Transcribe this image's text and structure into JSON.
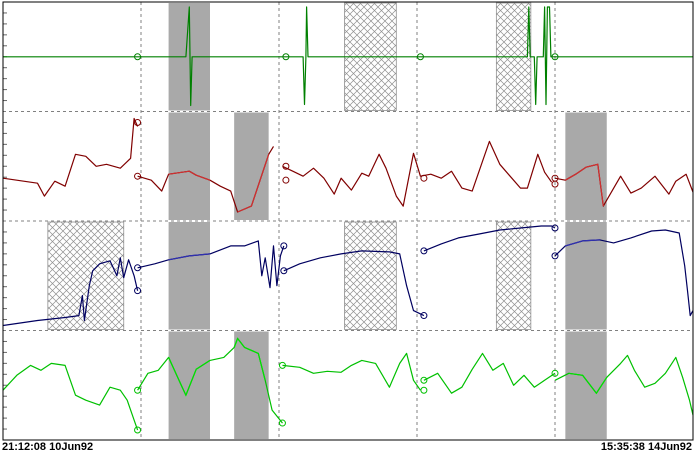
{
  "time_axis": {
    "start_label": "21:12:08 10Jun92",
    "end_label": "15:35:38 14Jun92"
  },
  "colors": {
    "gap_fill": "#a9a9a9",
    "hatch": "#909090",
    "grid": "#808080",
    "frame": "#000000",
    "tick": "#666666"
  },
  "chart_data": {
    "type": "line",
    "x_range": [
      0,
      100
    ],
    "grid_x": [
      20,
      40,
      60,
      80
    ],
    "panels": [
      {
        "id": "panel-1",
        "color": "#008000",
        "y_range": [
          0,
          1
        ],
        "gaps": [
          [
            24,
            30
          ]
        ],
        "hatched": [
          [
            49.5,
            57
          ],
          [
            71.5,
            76.5
          ]
        ],
        "segments": [
          [
            [
              0,
              0.5
            ],
            [
              19.5,
              0.5
            ],
            [
              24,
              0.5
            ],
            [
              26.5,
              0.5
            ],
            [
              27,
              1.0
            ],
            [
              27.2,
              0.01
            ],
            [
              27.4,
              0.5
            ],
            [
              30,
              0.5
            ],
            [
              41,
              0.5
            ],
            [
              43.5,
              0.5
            ],
            [
              43.7,
              0.02
            ],
            [
              43.9,
              0.5
            ],
            [
              44,
              1.0
            ],
            [
              44.2,
              0.5
            ],
            [
              60.5,
              0.5
            ],
            [
              76,
              0.5
            ],
            [
              76.2,
              1.0
            ],
            [
              76.4,
              0.5
            ],
            [
              77,
              0.5
            ],
            [
              77.2,
              0.02
            ],
            [
              77.4,
              0.5
            ],
            [
              78.3,
              0.5
            ],
            [
              78.5,
              1.0
            ],
            [
              78.7,
              0.02
            ],
            [
              78.9,
              1.0
            ],
            [
              79.2,
              1.0
            ],
            [
              79.4,
              0.5
            ],
            [
              81,
              0.5
            ],
            [
              100,
              0.5
            ]
          ]
        ],
        "markers": [
          [
            19.5,
            0.5
          ],
          [
            41,
            0.5
          ],
          [
            60.5,
            0.5
          ],
          [
            80,
            0.5
          ]
        ]
      },
      {
        "id": "panel-2",
        "color": "#800000",
        "highlight_color": "#d03030",
        "y_range": [
          0,
          1
        ],
        "gaps": [
          [
            24,
            30
          ],
          [
            33.5,
            38.5
          ],
          [
            81.5,
            87.5
          ]
        ],
        "hatched": [],
        "segments": [
          [
            [
              0,
              0.38
            ],
            [
              3,
              0.35
            ],
            [
              5,
              0.33
            ],
            [
              6,
              0.2
            ],
            [
              7.5,
              0.35
            ],
            [
              9,
              0.3
            ],
            [
              10.5,
              0.62
            ],
            [
              12,
              0.6
            ],
            [
              13.5,
              0.5
            ],
            [
              15,
              0.52
            ],
            [
              17,
              0.48
            ],
            [
              18.5,
              0.58
            ],
            [
              19,
              0.98
            ],
            [
              19.5,
              0.9
            ]
          ],
          [
            [
              19.5,
              0.4
            ],
            [
              21.5,
              0.36
            ],
            [
              23,
              0.25
            ],
            [
              24,
              0.42
            ],
            [
              27,
              0.45
            ],
            [
              28,
              0.41
            ],
            [
              30,
              0.36
            ],
            [
              31.5,
              0.3
            ],
            [
              33,
              0.25
            ],
            [
              34,
              0.04
            ],
            [
              36,
              0.1
            ],
            [
              38.5,
              0.62
            ],
            [
              39.2,
              0.7
            ]
          ],
          [
            [
              40.5,
              0.5
            ],
            [
              42,
              0.45
            ],
            [
              43.5,
              0.4
            ],
            [
              45,
              0.48
            ],
            [
              46.5,
              0.38
            ],
            [
              48,
              0.22
            ],
            [
              49,
              0.38
            ],
            [
              50.5,
              0.26
            ],
            [
              52,
              0.43
            ],
            [
              53,
              0.4
            ],
            [
              54.5,
              0.62
            ],
            [
              55.5,
              0.48
            ],
            [
              57,
              0.2
            ],
            [
              58,
              0.1
            ],
            [
              59.5,
              0.63
            ],
            [
              60.5,
              0.4
            ],
            [
              62,
              0.42
            ],
            [
              63.5,
              0.38
            ],
            [
              65,
              0.45
            ],
            [
              66.5,
              0.28
            ],
            [
              68,
              0.25
            ],
            [
              69.5,
              0.55
            ],
            [
              70.5,
              0.75
            ],
            [
              72,
              0.52
            ],
            [
              73.5,
              0.4
            ],
            [
              75,
              0.28
            ],
            [
              76,
              0.28
            ],
            [
              77.5,
              0.62
            ],
            [
              78.5,
              0.44
            ],
            [
              79.5,
              0.34
            ]
          ],
          [
            [
              80,
              0.38
            ],
            [
              81.5,
              0.36
            ],
            [
              83,
              0.42
            ],
            [
              84.5,
              0.49
            ],
            [
              86.2,
              0.52
            ],
            [
              87,
              0.1
            ],
            [
              89.5,
              0.4
            ],
            [
              91,
              0.23
            ],
            [
              92.5,
              0.28
            ],
            [
              94.5,
              0.4
            ],
            [
              96.5,
              0.22
            ],
            [
              97.5,
              0.35
            ],
            [
              99,
              0.42
            ],
            [
              100,
              0.24
            ]
          ]
        ],
        "markers": [
          [
            19.5,
            0.94
          ],
          [
            19.5,
            0.4
          ],
          [
            41,
            0.5
          ],
          [
            41,
            0.36
          ],
          [
            61,
            0.38
          ],
          [
            80,
            0.32
          ],
          [
            80,
            0.38
          ]
        ]
      },
      {
        "id": "panel-3",
        "color": "#000060",
        "highlight_color": "#3030b0",
        "y_range": [
          0,
          1
        ],
        "gaps": [
          [
            24,
            30
          ],
          [
            81.5,
            87.5
          ]
        ],
        "hatched": [
          [
            6.5,
            17.5
          ],
          [
            49.5,
            57
          ],
          [
            71.5,
            76.5
          ]
        ],
        "segments": [
          [
            [
              0,
              0.0
            ],
            [
              5,
              0.05
            ],
            [
              9,
              0.08
            ],
            [
              11,
              0.1
            ],
            [
              11.5,
              0.3
            ],
            [
              11.8,
              0.05
            ],
            [
              12.5,
              0.4
            ],
            [
              13,
              0.55
            ],
            [
              14,
              0.62
            ],
            [
              15.5,
              0.65
            ],
            [
              16.5,
              0.5
            ],
            [
              17,
              0.68
            ],
            [
              17.5,
              0.48
            ],
            [
              18.2,
              0.66
            ],
            [
              19,
              0.5
            ],
            [
              19.5,
              0.35
            ]
          ],
          [
            [
              19.5,
              0.58
            ],
            [
              22,
              0.62
            ],
            [
              24,
              0.66
            ],
            [
              27,
              0.7
            ],
            [
              30,
              0.72
            ],
            [
              33,
              0.8
            ],
            [
              35,
              0.8
            ],
            [
              37,
              0.85
            ],
            [
              37.5,
              0.5
            ],
            [
              38,
              0.68
            ],
            [
              38.7,
              0.38
            ],
            [
              39.2,
              0.8
            ],
            [
              39.7,
              0.4
            ],
            [
              40.2,
              0.7
            ],
            [
              40.7,
              0.8
            ]
          ],
          [
            [
              40.7,
              0.55
            ],
            [
              43,
              0.62
            ],
            [
              46,
              0.68
            ],
            [
              49,
              0.72
            ],
            [
              52,
              0.75
            ],
            [
              56,
              0.74
            ],
            [
              57.5,
              0.72
            ],
            [
              58.5,
              0.4
            ],
            [
              59.5,
              0.15
            ],
            [
              61,
              0.1
            ]
          ],
          [
            [
              61,
              0.75
            ],
            [
              63.5,
              0.82
            ],
            [
              66,
              0.88
            ],
            [
              69,
              0.92
            ],
            [
              72,
              0.96
            ],
            [
              75,
              0.98
            ],
            [
              78,
              1.0
            ],
            [
              79.5,
              1.0
            ],
            [
              80,
              0.98
            ]
          ],
          [
            [
              80,
              0.7
            ],
            [
              81.5,
              0.8
            ],
            [
              84,
              0.85
            ],
            [
              86.5,
              0.86
            ],
            [
              88.5,
              0.83
            ],
            [
              91,
              0.88
            ],
            [
              94,
              0.95
            ],
            [
              96,
              0.96
            ],
            [
              98,
              0.93
            ],
            [
              98.8,
              0.6
            ],
            [
              99.2,
              0.35
            ],
            [
              99.6,
              0.1
            ],
            [
              100,
              0.15
            ]
          ]
        ],
        "markers": [
          [
            19.5,
            0.58
          ],
          [
            19.5,
            0.35
          ],
          [
            40.7,
            0.8
          ],
          [
            40.7,
            0.55
          ],
          [
            61,
            0.75
          ],
          [
            61,
            0.1
          ],
          [
            80,
            0.98
          ],
          [
            80,
            0.7
          ]
        ]
      },
      {
        "id": "panel-4",
        "color": "#00c000",
        "highlight_color": "#00e000",
        "y_range": [
          0,
          1
        ],
        "gaps": [
          [
            24,
            30
          ],
          [
            33.5,
            38.5
          ],
          [
            81.5,
            87.5
          ]
        ],
        "hatched": [],
        "segments": [
          [
            [
              0,
              0.45
            ],
            [
              2,
              0.6
            ],
            [
              4,
              0.7
            ],
            [
              5.5,
              0.65
            ],
            [
              7,
              0.72
            ],
            [
              9,
              0.7
            ],
            [
              10.5,
              0.4
            ],
            [
              12,
              0.35
            ],
            [
              14,
              0.3
            ],
            [
              15.5,
              0.48
            ],
            [
              17,
              0.45
            ],
            [
              18,
              0.35
            ],
            [
              19,
              0.15
            ],
            [
              19.5,
              0.05
            ]
          ],
          [
            [
              19.5,
              0.45
            ],
            [
              21,
              0.62
            ],
            [
              22.5,
              0.65
            ],
            [
              24,
              0.78
            ],
            [
              25.5,
              0.55
            ],
            [
              26.5,
              0.4
            ],
            [
              28,
              0.66
            ],
            [
              30,
              0.75
            ],
            [
              32,
              0.78
            ],
            [
              33.5,
              0.88
            ],
            [
              34,
              0.97
            ],
            [
              35,
              0.88
            ],
            [
              37,
              0.82
            ],
            [
              38,
              0.55
            ],
            [
              39,
              0.25
            ],
            [
              40.5,
              0.12
            ]
          ],
          [
            [
              40.5,
              0.7
            ],
            [
              43,
              0.68
            ],
            [
              45,
              0.62
            ],
            [
              47,
              0.64
            ],
            [
              49,
              0.63
            ],
            [
              50.5,
              0.7
            ],
            [
              52,
              0.75
            ],
            [
              54,
              0.72
            ],
            [
              56,
              0.48
            ],
            [
              57.5,
              0.72
            ],
            [
              58.5,
              0.82
            ],
            [
              59.5,
              0.55
            ],
            [
              60.5,
              0.45
            ]
          ],
          [
            [
              61,
              0.55
            ],
            [
              63,
              0.62
            ],
            [
              65,
              0.42
            ],
            [
              66.5,
              0.48
            ],
            [
              68,
              0.66
            ],
            [
              69.5,
              0.82
            ],
            [
              71,
              0.65
            ],
            [
              72.5,
              0.72
            ],
            [
              74,
              0.5
            ],
            [
              75.5,
              0.6
            ],
            [
              77,
              0.48
            ],
            [
              78.5,
              0.55
            ],
            [
              80,
              0.62
            ]
          ],
          [
            [
              80,
              0.55
            ],
            [
              82,
              0.62
            ],
            [
              84,
              0.6
            ],
            [
              86,
              0.42
            ],
            [
              87.5,
              0.58
            ],
            [
              89.5,
              0.72
            ],
            [
              90.5,
              0.8
            ],
            [
              91.5,
              0.65
            ],
            [
              93,
              0.48
            ],
            [
              94.5,
              0.52
            ],
            [
              96,
              0.62
            ],
            [
              97.5,
              0.78
            ],
            [
              98.5,
              0.58
            ],
            [
              99.5,
              0.35
            ],
            [
              100,
              0.2
            ]
          ]
        ],
        "markers": [
          [
            19.5,
            0.45
          ],
          [
            19.5,
            0.05
          ],
          [
            40.5,
            0.12
          ],
          [
            40.5,
            0.7
          ],
          [
            61,
            0.55
          ],
          [
            61,
            0.45
          ],
          [
            80,
            0.62
          ]
        ]
      }
    ]
  }
}
